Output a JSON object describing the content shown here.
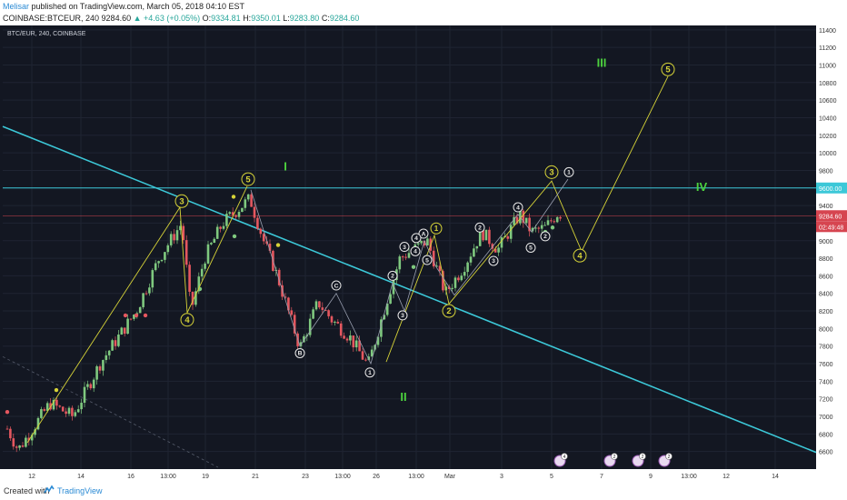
{
  "header": {
    "author": "Melisar",
    "published": "published on TradingView.com, March 05, 2018 04:10 EST",
    "symbol": "COINBASE:BTCEUR, 240",
    "last": "9284.60",
    "change_arrow": "▲",
    "change": "+4.63 (+0.05%)",
    "o_label": "O:",
    "o_value": "9334.81",
    "h_label": "H:",
    "h_value": "9350.01",
    "l_label": "L:",
    "l_value": "9283.80",
    "c_label": "C:",
    "c_value": "9284.60"
  },
  "footer": {
    "created_with": "Created with",
    "brand": "TradingView"
  },
  "colors": {
    "background": "#131722",
    "grid": "#1f2432",
    "up": "#7fc97f",
    "down": "#e5575f",
    "trendline": "#3cc8d8",
    "wave": "#d6d338",
    "wave_gray": "#9aa0b0",
    "roman": "#4cd23e",
    "circle_white": "#e8e8e8",
    "price_red": "#d64550"
  },
  "chart_data": {
    "type": "candlestick",
    "symbol_label": "BTC/EUR, 240, COINBASE",
    "ylim": [
      6400,
      11450
    ],
    "y_ticks": [
      6600,
      6800,
      7000,
      7200,
      7400,
      7600,
      7800,
      8000,
      8200,
      8400,
      8600,
      8800,
      9000,
      9200,
      9400,
      9600,
      9800,
      10000,
      10200,
      10400,
      10600,
      10800,
      11000,
      11200,
      11400
    ],
    "x_ticks": [
      "12",
      "14",
      "16",
      "13:00",
      "19",
      "21",
      "23",
      "13:00",
      "26",
      "13:00",
      "Mar",
      "3",
      "5",
      "7",
      "9",
      "13:00",
      "12",
      "14"
    ],
    "price_tags": [
      {
        "label": "9600.00",
        "value": 9600
      },
      {
        "label": "9284.60",
        "value": 9284.6
      },
      {
        "label": "02:49:48",
        "value": 9160
      }
    ],
    "roman_labels": [
      "I",
      "II",
      "III",
      "IV"
    ],
    "wave_labels": [
      "3",
      "4",
      "5",
      "3",
      "4",
      "5",
      "1",
      "2",
      "3",
      "4",
      "5",
      "A",
      "B",
      "C",
      "1",
      "2",
      "3",
      "4",
      "5",
      "1",
      "2",
      "3",
      "4",
      "2"
    ],
    "event_icons": [
      "4",
      "2",
      "2",
      "2"
    ]
  }
}
